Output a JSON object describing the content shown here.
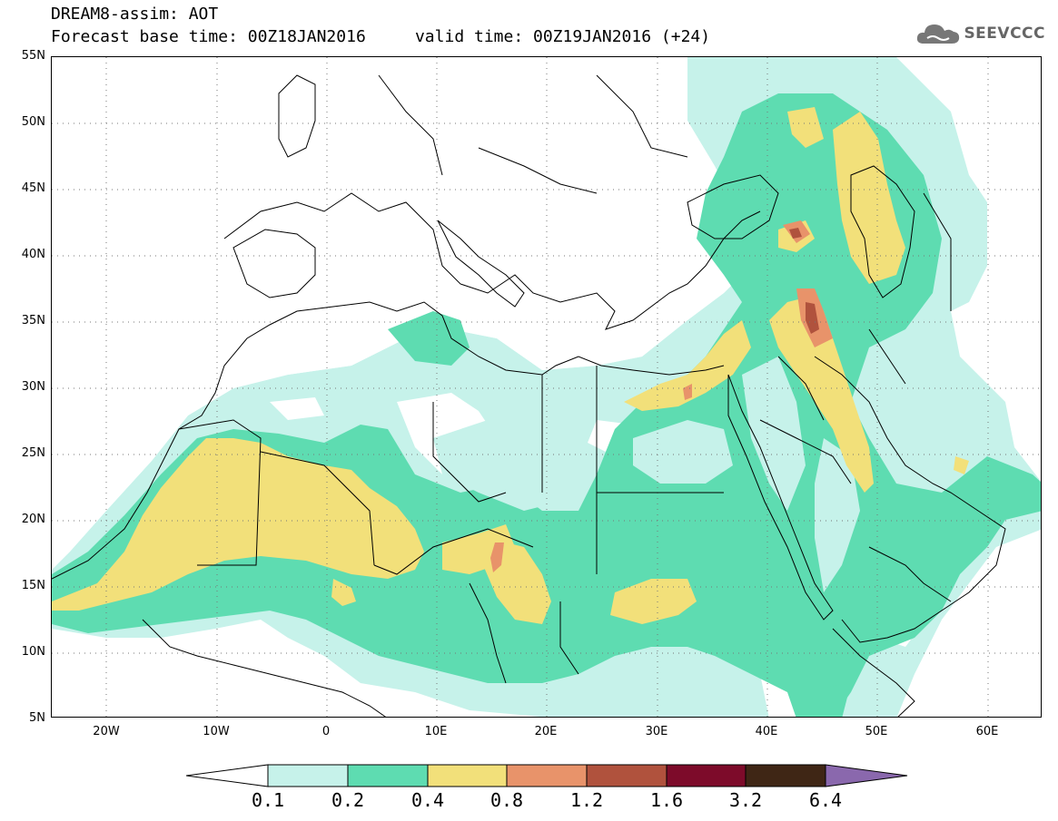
{
  "header": {
    "title": "DREAM8-assim: AOT",
    "base_time_line": "Forecast base time: 00Z18JAN2016     valid time: 00Z19JAN2016 (+24)"
  },
  "logo": {
    "text": "SEEVCCC",
    "icon": "cloud-logo-icon"
  },
  "map": {
    "lat_labels": [
      "55N",
      "50N",
      "45N",
      "40N",
      "35N",
      "30N",
      "25N",
      "20N",
      "15N",
      "10N",
      "5N"
    ],
    "lon_labels": [
      "20W",
      "10W",
      "0",
      "10E",
      "20E",
      "30E",
      "40E",
      "50E",
      "60E"
    ],
    "lon_range": [
      -25,
      65
    ],
    "lat_range": [
      5,
      55
    ],
    "grid": "dotted"
  },
  "colorbar": {
    "levels": [
      "0.1",
      "0.2",
      "0.4",
      "0.8",
      "1.2",
      "1.6",
      "3.2",
      "6.4"
    ],
    "colors": [
      "#ffffff",
      "#c6f2ea",
      "#5edcb1",
      "#f2e07a",
      "#e8936a",
      "#b0523d",
      "#7d0b2a",
      "#3f2615",
      "#8a68ad"
    ]
  }
}
